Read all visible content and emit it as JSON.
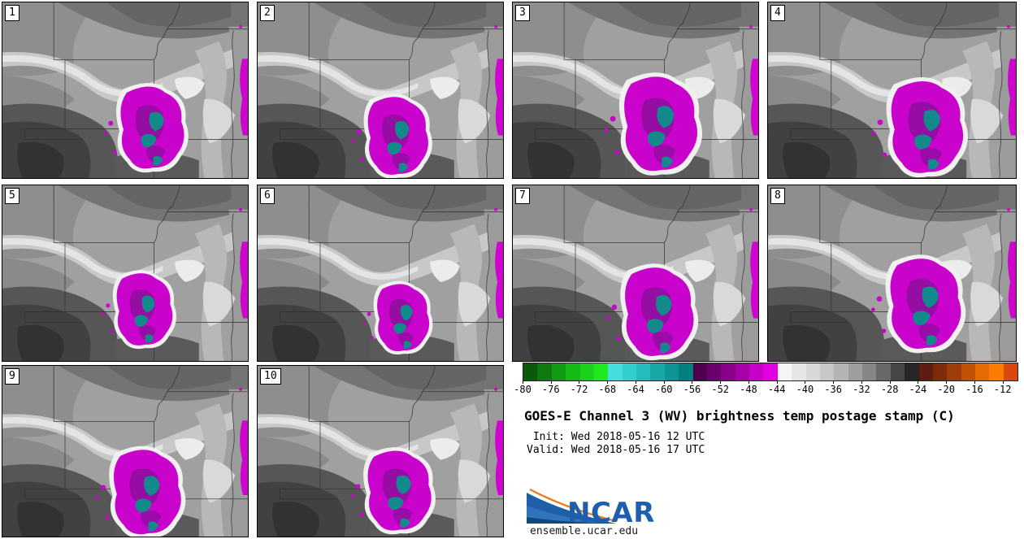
{
  "figure": {
    "title": "GOES-E Channel 3 (WV) brightness temp postage stamp (C)",
    "init_label": " Init: Wed 2018-05-16 12 UTC",
    "valid_label": "Valid: Wed 2018-05-16 17 UTC",
    "logo_text": "NCAR",
    "site_url": "ensemble.ucar.edu"
  },
  "panels": [
    {
      "label": "1"
    },
    {
      "label": "2"
    },
    {
      "label": "3"
    },
    {
      "label": "4"
    },
    {
      "label": "5"
    },
    {
      "label": "6"
    },
    {
      "label": "7"
    },
    {
      "label": "8"
    },
    {
      "label": "9"
    },
    {
      "label": "10"
    }
  ],
  "colorbar": {
    "min": -80,
    "max": -10,
    "segment_step": 2,
    "tick_step": 4,
    "ticks": [
      "-80",
      "-76",
      "-72",
      "-68",
      "-64",
      "-60",
      "-56",
      "-52",
      "-48",
      "-44",
      "-40",
      "-36",
      "-32",
      "-28",
      "-24",
      "-20",
      "-16",
      "-12"
    ],
    "segment_colors": [
      "#0a5a0a",
      "#0f7a0f",
      "#129a12",
      "#16ba16",
      "#1ad21a",
      "#20e820",
      "#45dede",
      "#32cfcf",
      "#24bcbc",
      "#18a8a8",
      "#0d9494",
      "#038080",
      "#4e004e",
      "#6c006c",
      "#8a008a",
      "#a800a8",
      "#c600c6",
      "#e400e4",
      "#f5f5f5",
      "#e6e6e6",
      "#d8d8d8",
      "#c8c8c8",
      "#b4b4b4",
      "#9e9e9e",
      "#868686",
      "#686868",
      "#464646",
      "#262626",
      "#5f1c10",
      "#7d2b0b",
      "#9e3d07",
      "#c05304",
      "#e66a02",
      "#fb7c01",
      "#d9480e"
    ],
    "key_colors": {
      "cold_core_teal": "#12898a",
      "cold_magenta": "#c903cb",
      "cold_purple": "#8d0f9e",
      "warm_orange": "#e66a02"
    }
  },
  "chart_data": {
    "type": "heatmap",
    "title": "GOES-E Channel 3 (WV) brightness temp postage stamp (C)",
    "subtitle_lines": [
      "Init: Wed 2018-05-16 12 UTC",
      "Valid: Wed 2018-05-16 17 UTC"
    ],
    "ensemble_members": [
      "1",
      "2",
      "3",
      "4",
      "5",
      "6",
      "7",
      "8",
      "9",
      "10"
    ],
    "units": "C",
    "colorbar_range": [
      -80,
      -10
    ],
    "colorbar_tick_values": [
      -80,
      -76,
      -72,
      -68,
      -64,
      -60,
      -56,
      -52,
      -48,
      -44,
      -40,
      -36,
      -32,
      -28,
      -24,
      -20,
      -16,
      -12
    ],
    "legend_position": "bottom-right of panel grid",
    "grid": "10 map panels: rows of 4, 4, 2 covering the central United States (NE/KS/OK/MO region)",
    "description": "Each stamp shows simulated water-vapor brightness temperature; magenta/teal blob of cold cloud tops (-48 to -62 C) over eastern Kansas/Oklahoma in every member, gray background -30 to -44 C"
  }
}
